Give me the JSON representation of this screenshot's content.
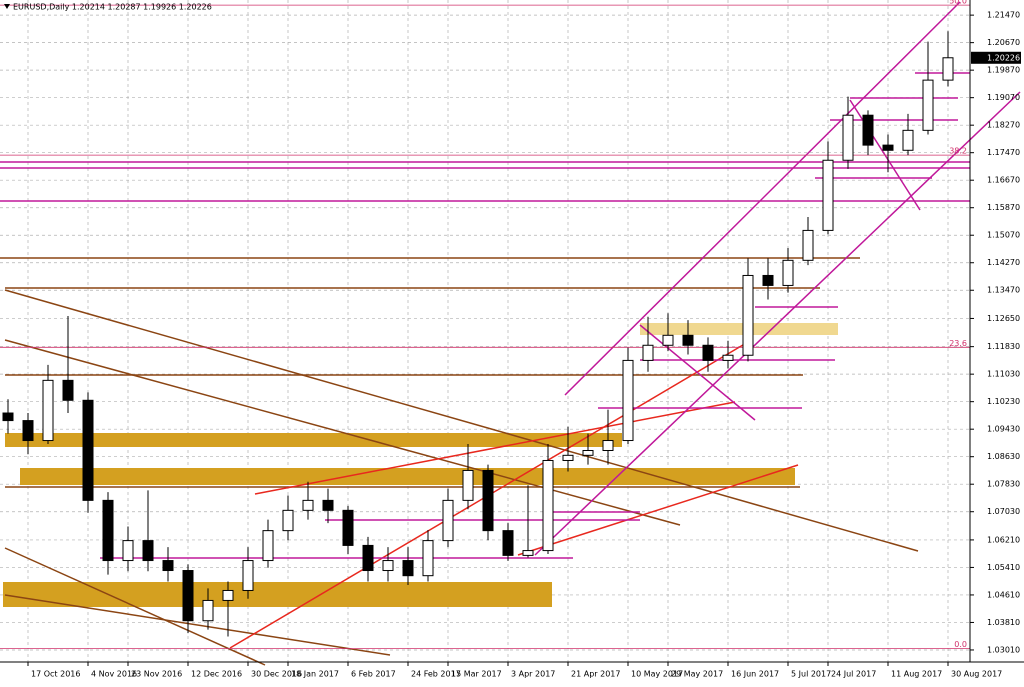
{
  "chart_data": {
    "type": "candlestick",
    "title": "EURUSD,Daily  1.20214 1.20287 1.19926 1.20226",
    "last_price_label": "1.20226",
    "categories": [
      null,
      "17 Oct 2016",
      null,
      null,
      "4 Nov 2016",
      null,
      "23 Nov 2016",
      null,
      null,
      "12 Dec 2016",
      null,
      null,
      "30 Dec 2016",
      null,
      "18 Jan 2017",
      null,
      null,
      "6 Feb 2017",
      null,
      null,
      "24 Feb 2017",
      null,
      "15 Mar 2017",
      null,
      null,
      "3 Apr 2017",
      null,
      null,
      "21 Apr 2017",
      null,
      null,
      "10 May 2017",
      null,
      "29 May 2017",
      null,
      null,
      "16 Jun 2017",
      null,
      null,
      "5 Jul 2017",
      null,
      "24 Jul 2017",
      null,
      null,
      "11 Aug 2017",
      null,
      null,
      "30 Aug 2017"
    ],
    "open": [
      1.099,
      1.0968,
      1.091,
      1.1085,
      1.1027,
      1.0736,
      1.0561,
      1.0619,
      1.0561,
      1.0532,
      1.0386,
      1.0445,
      1.0474,
      1.0561,
      1.0648,
      1.0707,
      1.0736,
      1.0707,
      1.0605,
      1.0532,
      1.0561,
      1.0517,
      1.0619,
      1.0736,
      1.0823,
      1.0648,
      1.0576,
      1.059,
      1.0852,
      1.0867,
      1.0881,
      1.091,
      1.1143,
      1.1187,
      1.1216,
      1.1187,
      1.1143,
      1.1158,
      1.139,
      1.1361,
      1.1434,
      1.1521,
      1.1725,
      1.1856,
      1.1769,
      1.1754,
      1.1812,
      1.1958
    ],
    "high": [
      1.103,
      1.099,
      1.113,
      1.1272,
      1.105,
      1.076,
      1.066,
      1.0765,
      1.06,
      1.055,
      1.048,
      1.05,
      1.06,
      1.068,
      1.075,
      1.079,
      1.077,
      1.072,
      1.063,
      1.06,
      1.06,
      1.065,
      1.077,
      1.09,
      1.084,
      1.067,
      1.078,
      1.09,
      1.095,
      1.093,
      1.1,
      1.118,
      1.127,
      1.128,
      1.126,
      1.121,
      1.12,
      1.144,
      1.144,
      1.147,
      1.156,
      1.178,
      1.191,
      1.187,
      1.18,
      1.186,
      1.207,
      1.21
    ],
    "low": [
      1.093,
      1.087,
      1.09,
      1.099,
      1.07,
      1.052,
      1.053,
      1.053,
      1.05,
      1.035,
      1.036,
      1.034,
      1.045,
      1.054,
      1.062,
      1.068,
      1.067,
      1.058,
      1.05,
      1.05,
      1.049,
      1.05,
      1.06,
      1.071,
      1.062,
      1.056,
      1.057,
      1.058,
      1.082,
      1.084,
      1.084,
      1.09,
      1.111,
      1.117,
      1.116,
      1.111,
      1.112,
      1.114,
      1.132,
      1.134,
      1.142,
      1.151,
      1.17,
      1.174,
      1.169,
      1.174,
      1.18,
      1.194
    ],
    "close": [
      1.0968,
      1.091,
      1.1085,
      1.1027,
      1.0736,
      1.0561,
      1.0619,
      1.0561,
      1.0532,
      1.0386,
      1.0445,
      1.0474,
      1.0561,
      1.0648,
      1.0707,
      1.0736,
      1.0707,
      1.0605,
      1.0532,
      1.0561,
      1.0517,
      1.0619,
      1.0736,
      1.0823,
      1.0648,
      1.0576,
      1.059,
      1.0852,
      1.0867,
      1.0881,
      1.091,
      1.1143,
      1.1187,
      1.1216,
      1.1187,
      1.1143,
      1.1158,
      1.139,
      1.1361,
      1.1434,
      1.1521,
      1.1725,
      1.1856,
      1.1769,
      1.1754,
      1.1812,
      1.1958,
      1.2023
    ],
    "ylim": [
      1.0266,
      1.2191
    ],
    "yticks": [
      {
        "value": 1.2147,
        "label": "1.21470"
      },
      {
        "value": 1.2067,
        "label": "1.20670"
      },
      {
        "value": 1.1987,
        "label": "1.19870"
      },
      {
        "value": 1.1907,
        "label": "1.19070"
      },
      {
        "value": 1.1827,
        "label": "1.18270"
      },
      {
        "value": 1.1747,
        "label": "1.17470"
      },
      {
        "value": 1.1667,
        "label": "1.16670"
      },
      {
        "value": 1.1587,
        "label": "1.15870"
      },
      {
        "value": 1.1507,
        "label": "1.15070"
      },
      {
        "value": 1.1427,
        "label": "1.14270"
      },
      {
        "value": 1.1347,
        "label": "1.13470"
      },
      {
        "value": 1.1265,
        "label": "1.12650"
      },
      {
        "value": 1.1183,
        "label": "1.11830"
      },
      {
        "value": 1.1103,
        "label": "1.11030"
      },
      {
        "value": 1.1023,
        "label": "1.10230"
      },
      {
        "value": 1.0943,
        "label": "1.09430"
      },
      {
        "value": 1.0863,
        "label": "1.08630"
      },
      {
        "value": 1.0783,
        "label": "1.07830"
      },
      {
        "value": 1.0703,
        "label": "1.07030"
      },
      {
        "value": 1.0621,
        "label": "1.06210"
      },
      {
        "value": 1.0541,
        "label": "1.05410"
      },
      {
        "value": 1.0461,
        "label": "1.04610"
      },
      {
        "value": 1.0381,
        "label": "1.03810"
      },
      {
        "value": 1.0301,
        "label": "1.03010"
      }
    ],
    "fib_levels": [
      {
        "label": "50.0",
        "price": 1.2176
      },
      {
        "label": "38.2",
        "price": 1.174
      },
      {
        "label": "23.6",
        "price": 1.1181
      },
      {
        "label": "0.0",
        "price": 1.0305
      }
    ],
    "grid": true,
    "bull_color": "#ffffff",
    "bear_color": "#000000",
    "fib_color": "#d0306a"
  }
}
